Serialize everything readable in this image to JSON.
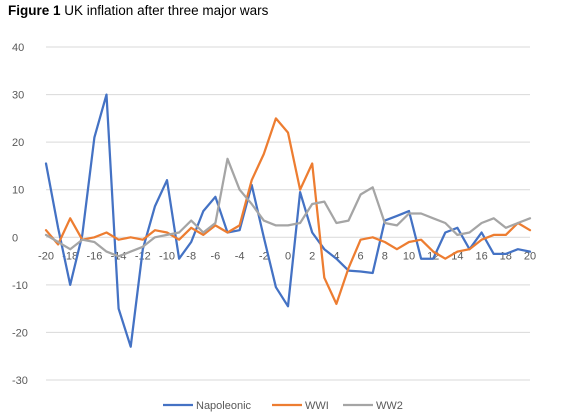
{
  "figure": {
    "label": "Figure 1",
    "title": "UK inflation after three major wars"
  },
  "chart_data": {
    "type": "line",
    "x": [
      -20,
      -19,
      -18,
      -17,
      -16,
      -15,
      -14,
      -13,
      -12,
      -11,
      -10,
      -9,
      -8,
      -7,
      -6,
      -5,
      -4,
      -3,
      -2,
      -1,
      0,
      1,
      2,
      3,
      4,
      5,
      6,
      7,
      8,
      9,
      10,
      11,
      12,
      13,
      14,
      15,
      16,
      17,
      18,
      19,
      20
    ],
    "xticks": [
      -20,
      -18,
      -16,
      -14,
      -12,
      -10,
      -8,
      -6,
      -4,
      -2,
      0,
      2,
      4,
      6,
      8,
      10,
      12,
      14,
      16,
      18,
      20
    ],
    "ylim": [
      -30,
      40
    ],
    "yticks": [
      -30,
      -20,
      -10,
      0,
      10,
      20,
      30,
      40
    ],
    "xlabel": "",
    "ylabel": "",
    "grid": "horizontal",
    "legend_position": "bottom",
    "series": [
      {
        "name": "Napoleonic",
        "color": "#4472C4",
        "values": [
          15.5,
          2,
          -10,
          0.5,
          21,
          30,
          -15,
          -23,
          -2.5,
          6.5,
          12,
          -4.5,
          -1,
          5.5,
          8.5,
          1,
          1.5,
          11,
          0,
          -10.5,
          -14.5,
          9.5,
          1,
          -2.5,
          -4.5,
          -7,
          -7.2,
          -7.5,
          3.5,
          4.5,
          5.5,
          -4.5,
          -4.5,
          1,
          2,
          -2.5,
          1,
          -3.5,
          -3.5,
          -2.5,
          -3
        ]
      },
      {
        "name": "WWI",
        "color": "#ED7D31",
        "values": [
          1.5,
          -1.5,
          4,
          -0.5,
          0,
          1,
          -0.5,
          0,
          -0.5,
          1.5,
          1,
          -0.5,
          2,
          0.5,
          2.5,
          1,
          2.5,
          12,
          17.5,
          25,
          22,
          10,
          15.5,
          -8.5,
          -14,
          -6.5,
          -0.5,
          0,
          -1,
          -2.5,
          -1,
          -0.5,
          -3,
          -4.5,
          -3,
          -2.5,
          -0.5,
          0.5,
          0.5,
          3,
          1.5
        ]
      },
      {
        "name": "WW2",
        "color": "#A5A5A5",
        "values": [
          0.5,
          -1,
          -2.5,
          -0.5,
          -1,
          -3,
          -4,
          -3,
          -2,
          0,
          0.5,
          1,
          3.5,
          1,
          3,
          16.5,
          10,
          7,
          3.5,
          2.5,
          2.5,
          3,
          7,
          7.5,
          3,
          3.5,
          9,
          10.5,
          3,
          2.5,
          5,
          5,
          4,
          3,
          0.5,
          1,
          3,
          4,
          2,
          3,
          4
        ]
      }
    ]
  }
}
